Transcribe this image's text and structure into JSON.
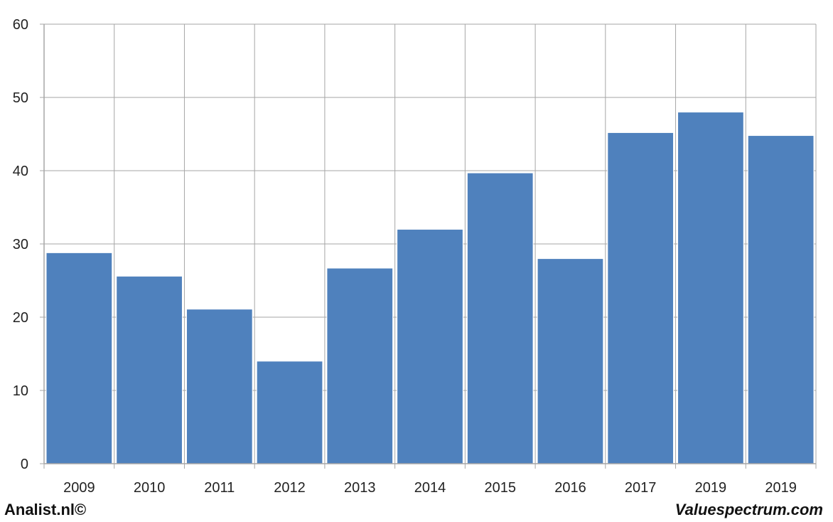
{
  "footer": {
    "left_text": "Analist.nl©",
    "right_text": "Valuespectrum.com"
  },
  "colors": {
    "bar": "#4f81bd",
    "grid": "#a6a6a6",
    "background": "#ffffff",
    "outer_background": "#d9d9d9"
  },
  "chart_data": {
    "type": "bar",
    "categories": [
      "2009",
      "2010",
      "2011",
      "2012",
      "2013",
      "2014",
      "2015",
      "2016",
      "2017",
      "2019",
      "2019"
    ],
    "values": [
      28.8,
      25.6,
      21.1,
      14.0,
      26.7,
      32.0,
      39.7,
      28.0,
      45.2,
      48.0,
      44.8
    ],
    "title": "",
    "xlabel": "",
    "ylabel": "",
    "ylim": [
      0,
      60
    ],
    "yticks": [
      0,
      10,
      20,
      30,
      40,
      50,
      60
    ],
    "grid": true,
    "legend": "none"
  }
}
